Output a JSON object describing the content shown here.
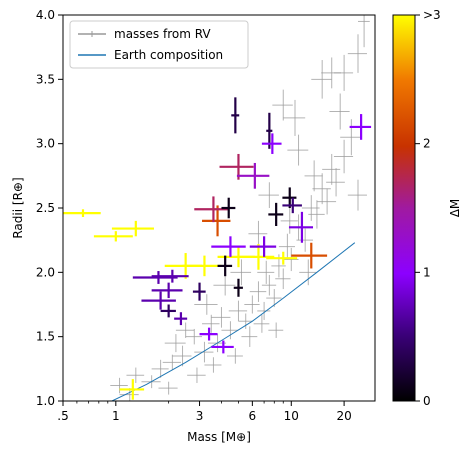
{
  "chart_data": {
    "type": "scatter",
    "xlabel": "Mass [M⊕]",
    "ylabel": "Radii [R⊕]",
    "xscale": "log",
    "xlim": [
      0.5,
      30
    ],
    "ylim": [
      1.0,
      4.0
    ],
    "xticks": [
      {
        "value": 0.5,
        "label": ".5"
      },
      {
        "value": 1,
        "label": "1"
      },
      {
        "value": 3,
        "label": "3"
      },
      {
        "value": 6,
        "label": "6"
      },
      {
        "value": 10,
        "label": "10"
      },
      {
        "value": 20,
        "label": "20"
      }
    ],
    "yticks": [
      {
        "value": 1.0,
        "label": "1.0"
      },
      {
        "value": 1.5,
        "label": "1.5"
      },
      {
        "value": 2.0,
        "label": "2.0"
      },
      {
        "value": 2.5,
        "label": "2.5"
      },
      {
        "value": 3.0,
        "label": "3.0"
      },
      {
        "value": 3.5,
        "label": "3.5"
      },
      {
        "value": 4.0,
        "label": "4.0"
      }
    ],
    "legend": {
      "placement": "top-left",
      "entries": [
        {
          "label": "masses from RV",
          "style": "gray-errorbar",
          "color": "#999999"
        },
        {
          "label": "Earth composition",
          "style": "line",
          "color": "#1f77b4"
        }
      ]
    },
    "colorbar": {
      "label": "ΔM",
      "range": [
        0,
        3
      ],
      "ticks": [
        {
          "value": 0,
          "label": "0"
        },
        {
          "value": 1,
          "label": "1"
        },
        {
          "value": 2,
          "label": "2"
        },
        {
          "value": 3,
          "label": ">3"
        }
      ]
    },
    "earth_composition": {
      "color": "#1f77b4",
      "points": [
        [
          0.95,
          1.0
        ],
        [
          1.5,
          1.13
        ],
        [
          2.5,
          1.3
        ],
        [
          4,
          1.47
        ],
        [
          6,
          1.62
        ],
        [
          9,
          1.8
        ],
        [
          14,
          2.0
        ],
        [
          23,
          2.23
        ]
      ]
    },
    "rv_points": [
      [
        1.05,
        1.12,
        0.12,
        0.06
      ],
      [
        1.3,
        1.2,
        0.15,
        0.06
      ],
      [
        1.6,
        1.15,
        0.2,
        0.05
      ],
      [
        1.8,
        1.25,
        0.2,
        0.07
      ],
      [
        2.1,
        1.3,
        0.25,
        0.06
      ],
      [
        2.4,
        1.35,
        0.3,
        0.08
      ],
      [
        2.2,
        1.45,
        0.3,
        0.07
      ],
      [
        2.8,
        1.5,
        0.3,
        0.06
      ],
      [
        3.2,
        1.38,
        0.4,
        0.08
      ],
      [
        2.5,
        1.55,
        0.3,
        0.06
      ],
      [
        3.5,
        1.6,
        0.4,
        0.07
      ],
      [
        4.0,
        1.65,
        0.5,
        0.08
      ],
      [
        4.5,
        1.55,
        0.5,
        0.07
      ],
      [
        5.0,
        1.7,
        0.6,
        0.08
      ],
      [
        5.5,
        1.62,
        0.5,
        0.06
      ],
      [
        6.0,
        1.75,
        0.6,
        0.07
      ],
      [
        6.5,
        1.85,
        0.7,
        0.08
      ],
      [
        7.0,
        1.7,
        0.6,
        0.07
      ],
      [
        7.5,
        1.9,
        0.7,
        0.08
      ],
      [
        8.0,
        1.8,
        0.8,
        0.07
      ],
      [
        8.5,
        2.05,
        0.8,
        0.09
      ],
      [
        9.0,
        1.95,
        0.9,
        0.08
      ],
      [
        9.5,
        2.2,
        1.0,
        0.1
      ],
      [
        10.0,
        2.1,
        1.0,
        0.09
      ],
      [
        11.0,
        2.35,
        1.2,
        0.1
      ],
      [
        12.0,
        2.25,
        1.3,
        0.09
      ],
      [
        13.0,
        2.5,
        1.5,
        0.1
      ],
      [
        14.0,
        2.45,
        1.5,
        0.11
      ],
      [
        15.0,
        2.65,
        1.8,
        0.12
      ],
      [
        16.0,
        2.55,
        2.0,
        0.1
      ],
      [
        17.0,
        2.8,
        2.0,
        0.12
      ],
      [
        18.0,
        2.7,
        2.2,
        0.11
      ],
      [
        20.0,
        2.9,
        2.5,
        0.13
      ],
      [
        22.0,
        3.05,
        3.0,
        0.14
      ],
      [
        24.0,
        2.6,
        3.0,
        0.12
      ],
      [
        19.0,
        3.25,
        2.5,
        0.14
      ],
      [
        15.0,
        3.5,
        2.0,
        0.15
      ],
      [
        17.0,
        3.55,
        2.2,
        0.12
      ],
      [
        20.0,
        3.55,
        2.5,
        0.14
      ],
      [
        24.0,
        3.7,
        3.0,
        0.15
      ],
      [
        26.0,
        3.95,
        2.0,
        0.2
      ],
      [
        10.5,
        3.2,
        1.5,
        0.14
      ],
      [
        9.0,
        3.3,
        1.2,
        0.12
      ],
      [
        11.0,
        2.95,
        1.5,
        0.12
      ],
      [
        7.5,
        2.6,
        1.0,
        0.1
      ],
      [
        6.5,
        2.3,
        0.8,
        0.1
      ],
      [
        5.2,
        2.0,
        0.7,
        0.1
      ],
      [
        4.2,
        1.9,
        0.6,
        0.08
      ],
      [
        3.3,
        1.75,
        0.5,
        0.08
      ],
      [
        2.9,
        1.2,
        0.35,
        0.06
      ],
      [
        3.8,
        1.45,
        0.45,
        0.07
      ],
      [
        5.8,
        1.5,
        0.6,
        0.08
      ],
      [
        6.8,
        1.6,
        0.7,
        0.07
      ],
      [
        8.2,
        1.55,
        0.8,
        0.06
      ],
      [
        7.2,
        2.0,
        0.8,
        0.09
      ],
      [
        9.8,
        2.4,
        1.1,
        0.1
      ],
      [
        12.5,
        2.0,
        1.4,
        0.1
      ],
      [
        13.5,
        2.75,
        1.6,
        0.12
      ],
      [
        4.8,
        1.35,
        0.5,
        0.06
      ],
      [
        3.6,
        1.28,
        0.4,
        0.06
      ],
      [
        2.0,
        1.1,
        0.25,
        0.05
      ],
      [
        1.2,
        1.05,
        0.15,
        0.05
      ]
    ],
    "highlight_points": [
      {
        "x": 1.0,
        "y": 2.28,
        "xerr": 0.25,
        "yerr": 0.04,
        "delta": 3
      },
      {
        "x": 0.65,
        "y": 2.46,
        "xerr": 0.17,
        "yerr": 0.03,
        "delta": 3
      },
      {
        "x": 1.3,
        "y": 2.34,
        "xerr": 0.35,
        "yerr": 0.06,
        "delta": 3
      },
      {
        "x": 1.25,
        "y": 1.09,
        "xerr": 0.2,
        "yerr": 0.08,
        "delta": 3
      },
      {
        "x": 2.5,
        "y": 2.05,
        "xerr": 0.6,
        "yerr": 0.1,
        "delta": 3
      },
      {
        "x": 3.2,
        "y": 2.05,
        "xerr": 0.8,
        "yerr": 0.08,
        "delta": 3
      },
      {
        "x": 5.0,
        "y": 2.12,
        "xerr": 1.2,
        "yerr": 0.08,
        "delta": 3
      },
      {
        "x": 6.5,
        "y": 2.12,
        "xerr": 1.5,
        "yerr": 0.1,
        "delta": 3
      },
      {
        "x": 9.0,
        "y": 2.11,
        "xerr": 1.8,
        "yerr": 0.05,
        "delta": 3
      },
      {
        "x": 13.0,
        "y": 2.13,
        "xerr": 3.0,
        "yerr": 0.1,
        "delta": 2.2
      },
      {
        "x": 3.8,
        "y": 2.4,
        "xerr": 0.7,
        "yerr": 0.12,
        "delta": 2.2
      },
      {
        "x": 3.6,
        "y": 2.49,
        "xerr": 0.8,
        "yerr": 0.1,
        "delta": 1.7
      },
      {
        "x": 5.0,
        "y": 2.82,
        "xerr": 1.1,
        "yerr": 0.1,
        "delta": 1.7
      },
      {
        "x": 6.2,
        "y": 2.75,
        "xerr": 1.3,
        "yerr": 0.1,
        "delta": 1.3
      },
      {
        "x": 4.4,
        "y": 2.5,
        "xerr": 0.4,
        "yerr": 0.08,
        "delta": 0.1
      },
      {
        "x": 4.8,
        "y": 3.22,
        "xerr": 0.25,
        "yerr": 0.14,
        "delta": 0.3
      },
      {
        "x": 7.5,
        "y": 3.1,
        "xerr": 0.3,
        "yerr": 0.14,
        "delta": 0.3
      },
      {
        "x": 7.8,
        "y": 3.0,
        "xerr": 1.0,
        "yerr": 0.08,
        "delta": 1.0
      },
      {
        "x": 8.2,
        "y": 2.45,
        "xerr": 0.8,
        "yerr": 0.09,
        "delta": 0.1
      },
      {
        "x": 9.8,
        "y": 2.58,
        "xerr": 0.9,
        "yerr": 0.08,
        "delta": 0.1
      },
      {
        "x": 10.2,
        "y": 2.52,
        "xerr": 1.3,
        "yerr": 0.06,
        "delta": 0.5
      },
      {
        "x": 11.5,
        "y": 2.35,
        "xerr": 1.8,
        "yerr": 0.12,
        "delta": 0.9
      },
      {
        "x": 25.0,
        "y": 3.13,
        "xerr": 3.5,
        "yerr": 0.1,
        "delta": 1.0
      },
      {
        "x": 4.5,
        "y": 2.2,
        "xerr": 1.0,
        "yerr": 0.08,
        "delta": 1.0
      },
      {
        "x": 7.0,
        "y": 2.2,
        "xerr": 1.2,
        "yerr": 0.08,
        "delta": 0.9
      },
      {
        "x": 4.2,
        "y": 2.05,
        "xerr": 0.4,
        "yerr": 0.08,
        "delta": 0.1
      },
      {
        "x": 1.75,
        "y": 1.96,
        "xerr": 0.5,
        "yerr": 0.05,
        "delta": 0.7
      },
      {
        "x": 2.1,
        "y": 1.97,
        "xerr": 0.5,
        "yerr": 0.05,
        "delta": 0.7
      },
      {
        "x": 2.0,
        "y": 1.86,
        "xerr": 0.4,
        "yerr": 0.06,
        "delta": 0.7
      },
      {
        "x": 3.0,
        "y": 1.85,
        "xerr": 0.25,
        "yerr": 0.07,
        "delta": 0.4
      },
      {
        "x": 1.8,
        "y": 1.78,
        "xerr": 0.4,
        "yerr": 0.07,
        "delta": 0.7
      },
      {
        "x": 2.0,
        "y": 1.7,
        "xerr": 0.2,
        "yerr": 0.05,
        "delta": 0.4
      },
      {
        "x": 2.35,
        "y": 1.64,
        "xerr": 0.2,
        "yerr": 0.05,
        "delta": 0.7
      },
      {
        "x": 5.0,
        "y": 1.88,
        "xerr": 0.3,
        "yerr": 0.07,
        "delta": 0.1
      },
      {
        "x": 3.4,
        "y": 1.52,
        "xerr": 0.4,
        "yerr": 0.05,
        "delta": 1.0
      },
      {
        "x": 4.1,
        "y": 1.42,
        "xerr": 0.6,
        "yerr": 0.05,
        "delta": 1.0
      }
    ]
  }
}
